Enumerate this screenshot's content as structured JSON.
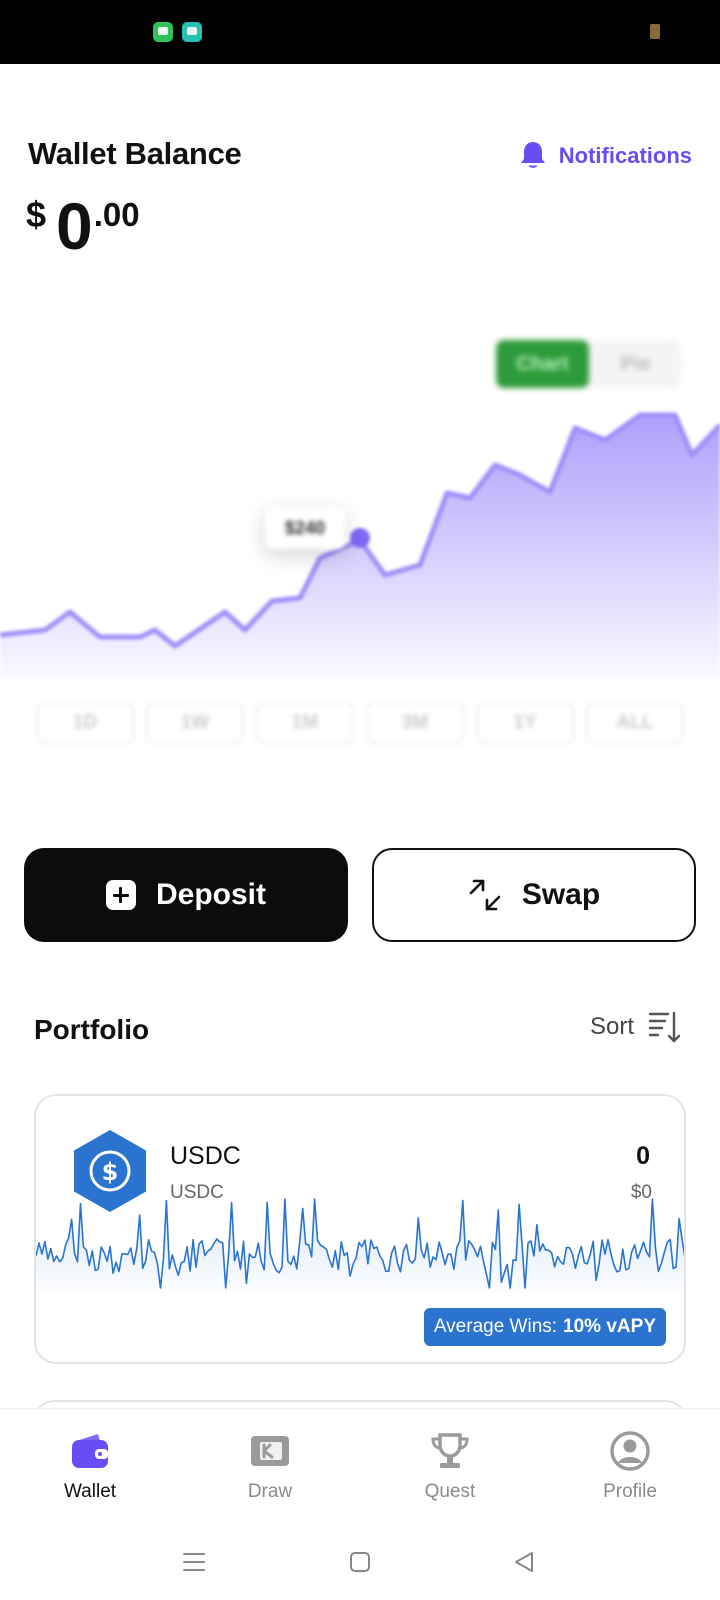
{
  "header": {
    "title": "Wallet Balance",
    "notifications_label": "Notifications",
    "accent": "#6a4df2"
  },
  "balance": {
    "currency": "$",
    "integer": "0",
    "decimal": ".00"
  },
  "chart_preview": {
    "blurred": true,
    "toggle": [
      "Chart",
      "Pie"
    ],
    "tooltip": "$240",
    "ranges": [
      "1D",
      "1W",
      "1M",
      "3M",
      "1Y",
      "ALL"
    ]
  },
  "actions": {
    "deposit_label": "Deposit",
    "swap_label": "Swap"
  },
  "portfolio": {
    "title": "Portfolio",
    "sort_label": "Sort",
    "assets": [
      {
        "name": "USDC",
        "symbol": "USDC",
        "amount": "0",
        "value": "$0",
        "badge_prefix": "Average Wins:",
        "badge_value": "10% vAPY",
        "color": "#2a74cf"
      }
    ]
  },
  "bottom_nav": [
    {
      "label": "Wallet",
      "icon": "wallet-icon",
      "active": true
    },
    {
      "label": "Draw",
      "icon": "ticket-icon",
      "active": false
    },
    {
      "label": "Quest",
      "icon": "trophy-icon",
      "active": false
    },
    {
      "label": "Profile",
      "icon": "user-circle-icon",
      "active": false
    }
  ]
}
